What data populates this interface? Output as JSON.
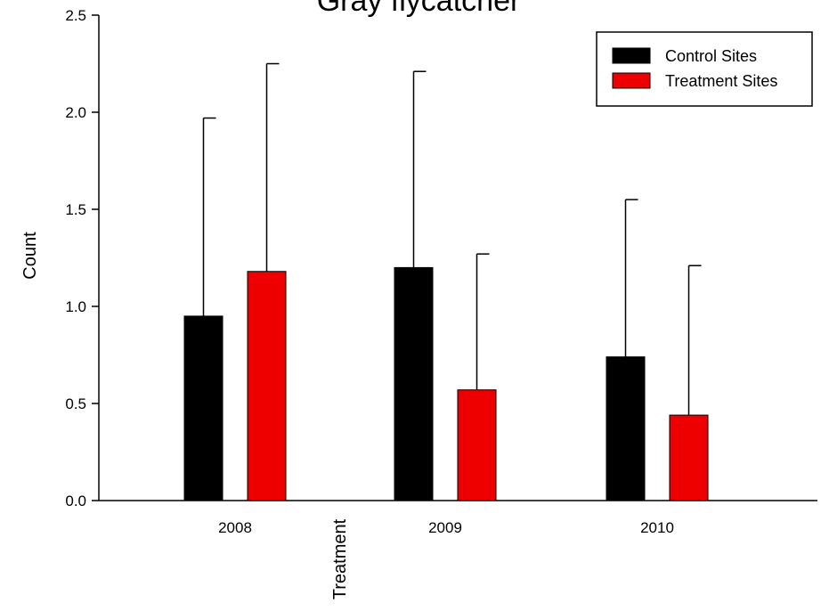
{
  "chart_data": {
    "type": "bar",
    "title": "Gray flycatcher",
    "xlabel": "Treatment",
    "ylabel": "Count",
    "categories": [
      "2008",
      "2009",
      "2010"
    ],
    "ylim": [
      0,
      2.5
    ],
    "yticks": [
      "0.0",
      "0.5",
      "1.0",
      "1.5",
      "2.0",
      "2.5"
    ],
    "grid": false,
    "legend_position": "top-right",
    "series": [
      {
        "name": "Control Sites",
        "color": "#000000",
        "values": [
          0.95,
          1.2,
          0.74
        ],
        "error_upper": [
          1.97,
          2.21,
          1.55
        ]
      },
      {
        "name": "Treatment Sites",
        "color": "#ee0000",
        "values": [
          1.18,
          0.57,
          0.44
        ],
        "error_upper": [
          2.25,
          1.27,
          1.21
        ]
      }
    ]
  }
}
